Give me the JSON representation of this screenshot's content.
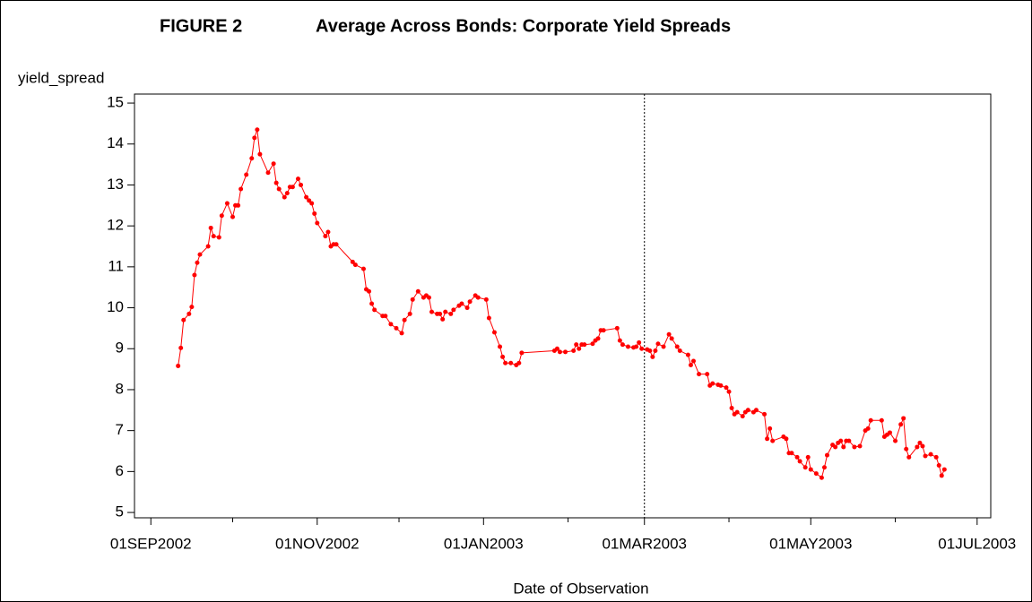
{
  "chart_data": {
    "type": "line",
    "figure_label": "FIGURE 2",
    "title": "Average Across Bonds: Corporate Yield Spreads",
    "ylabel": "yield_spread",
    "xlabel": "Date of Observation",
    "color": "#ff0000",
    "reference_line": "2003-03-01",
    "xlim": [
      "2002-08-26",
      "2003-07-06"
    ],
    "xticks": [
      {
        "value": "2002-09-01",
        "label": "01SEP2002"
      },
      {
        "value": "2002-11-01",
        "label": "01NOV2002"
      },
      {
        "value": "2003-01-01",
        "label": "01JAN2003"
      },
      {
        "value": "2003-03-01",
        "label": "01MAR2003"
      },
      {
        "value": "2003-05-01",
        "label": "01MAY2003"
      },
      {
        "value": "2003-07-01",
        "label": "01JUL2003"
      }
    ],
    "xminorticks": [
      "2002-10-01",
      "2002-12-01",
      "2003-02-01",
      "2003-04-01",
      "2003-06-01"
    ],
    "ylim": [
      4.87,
      15.22
    ],
    "yticks": [
      5,
      6,
      7,
      8,
      9,
      10,
      11,
      12,
      13,
      14,
      15
    ],
    "x": [
      "2002-09-11",
      "2002-09-12",
      "2002-09-13",
      "2002-09-15",
      "2002-09-16",
      "2002-09-17",
      "2002-09-18",
      "2002-09-19",
      "2002-09-22",
      "2002-09-23",
      "2002-09-24",
      "2002-09-26",
      "2002-09-27",
      "2002-09-29",
      "2002-10-01",
      "2002-10-02",
      "2002-10-03",
      "2002-10-04",
      "2002-10-06",
      "2002-10-08",
      "2002-10-09",
      "2002-10-10",
      "2002-10-11",
      "2002-10-14",
      "2002-10-16",
      "2002-10-17",
      "2002-10-18",
      "2002-10-20",
      "2002-10-21",
      "2002-10-22",
      "2002-10-23",
      "2002-10-25",
      "2002-10-26",
      "2002-10-28",
      "2002-10-29",
      "2002-10-30",
      "2002-10-31",
      "2002-11-01",
      "2002-11-04",
      "2002-11-05",
      "2002-11-06",
      "2002-11-07",
      "2002-11-08",
      "2002-11-14",
      "2002-11-15",
      "2002-11-18",
      "2002-11-19",
      "2002-11-20",
      "2002-11-21",
      "2002-11-22",
      "2002-11-25",
      "2002-11-26",
      "2002-11-28",
      "2002-11-30",
      "2002-12-02",
      "2002-12-03",
      "2002-12-05",
      "2002-12-06",
      "2002-12-08",
      "2002-12-10",
      "2002-12-11",
      "2002-12-12",
      "2002-12-13",
      "2002-12-15",
      "2002-12-16",
      "2002-12-17",
      "2002-12-18",
      "2002-12-20",
      "2002-12-21",
      "2002-12-23",
      "2002-12-24",
      "2002-12-26",
      "2002-12-27",
      "2002-12-29",
      "2002-12-30",
      "2003-01-02",
      "2003-01-03",
      "2003-01-05",
      "2003-01-07",
      "2003-01-08",
      "2003-01-09",
      "2003-01-11",
      "2003-01-13",
      "2003-01-14",
      "2003-01-15",
      "2003-01-27",
      "2003-01-28",
      "2003-01-29",
      "2003-01-31",
      "2003-02-03",
      "2003-02-04",
      "2003-02-05",
      "2003-02-06",
      "2003-02-07",
      "2003-02-10",
      "2003-02-11",
      "2003-02-12",
      "2003-02-13",
      "2003-02-14",
      "2003-02-19",
      "2003-02-20",
      "2003-02-21",
      "2003-02-23",
      "2003-02-25",
      "2003-02-26",
      "2003-02-27",
      "2003-02-28",
      "2003-03-02",
      "2003-03-03",
      "2003-03-04",
      "2003-03-05",
      "2003-03-06",
      "2003-03-08",
      "2003-03-10",
      "2003-03-11",
      "2003-03-13",
      "2003-03-14",
      "2003-03-17",
      "2003-03-18",
      "2003-03-19",
      "2003-03-21",
      "2003-03-24",
      "2003-03-25",
      "2003-03-26",
      "2003-03-28",
      "2003-03-29",
      "2003-03-31",
      "2003-04-01",
      "2003-04-02",
      "2003-04-03",
      "2003-04-04",
      "2003-04-06",
      "2003-04-07",
      "2003-04-08",
      "2003-04-10",
      "2003-04-11",
      "2003-04-14",
      "2003-04-15",
      "2003-04-16",
      "2003-04-17",
      "2003-04-21",
      "2003-04-22",
      "2003-04-23",
      "2003-04-24",
      "2003-04-26",
      "2003-04-27",
      "2003-04-29",
      "2003-04-30",
      "2003-05-01",
      "2003-05-03",
      "2003-05-05",
      "2003-05-06",
      "2003-05-07",
      "2003-05-09",
      "2003-05-10",
      "2003-05-11",
      "2003-05-12",
      "2003-05-13",
      "2003-05-14",
      "2003-05-15",
      "2003-05-17",
      "2003-05-19",
      "2003-05-21",
      "2003-05-22",
      "2003-05-23",
      "2003-05-27",
      "2003-05-28",
      "2003-05-29",
      "2003-05-30",
      "2003-06-01",
      "2003-06-03",
      "2003-06-04",
      "2003-06-05",
      "2003-06-06",
      "2003-06-09",
      "2003-06-10",
      "2003-06-11",
      "2003-06-12",
      "2003-06-14",
      "2003-06-16",
      "2003-06-17",
      "2003-06-18",
      "2003-06-19"
    ],
    "values": [
      8.58,
      9.02,
      9.7,
      9.85,
      10.02,
      10.8,
      11.1,
      11.3,
      11.5,
      11.95,
      11.75,
      11.72,
      12.25,
      12.55,
      12.22,
      12.5,
      12.5,
      12.9,
      13.25,
      13.65,
      14.15,
      14.35,
      13.75,
      13.3,
      13.52,
      13.05,
      12.9,
      12.7,
      12.8,
      12.95,
      12.95,
      13.15,
      13.0,
      12.7,
      12.62,
      12.55,
      12.3,
      12.07,
      11.75,
      11.85,
      11.5,
      11.55,
      11.55,
      11.12,
      11.05,
      10.95,
      10.45,
      10.4,
      10.1,
      9.95,
      9.8,
      9.8,
      9.6,
      9.5,
      9.38,
      9.7,
      9.85,
      10.2,
      10.4,
      10.25,
      10.3,
      10.25,
      9.9,
      9.85,
      9.85,
      9.72,
      9.9,
      9.85,
      9.95,
      10.05,
      10.1,
      10.0,
      10.15,
      10.3,
      10.25,
      10.2,
      9.75,
      9.4,
      9.05,
      8.8,
      8.65,
      8.65,
      8.6,
      8.65,
      8.9,
      8.95,
      9.0,
      8.92,
      8.92,
      8.95,
      9.1,
      9.0,
      9.1,
      9.1,
      9.12,
      9.2,
      9.25,
      9.45,
      9.45,
      9.5,
      9.2,
      9.1,
      9.05,
      9.03,
      9.05,
      9.15,
      9.0,
      8.98,
      8.95,
      8.8,
      8.95,
      9.12,
      9.05,
      9.35,
      9.25,
      9.05,
      8.95,
      8.85,
      8.6,
      8.7,
      8.38,
      8.38,
      8.1,
      8.15,
      8.12,
      8.1,
      8.05,
      7.95,
      7.55,
      7.4,
      7.45,
      7.35,
      7.45,
      7.5,
      7.45,
      7.5,
      7.4,
      6.8,
      7.05,
      6.75,
      6.85,
      6.8,
      6.45,
      6.45,
      6.35,
      6.25,
      6.1,
      6.35,
      6.05,
      5.95,
      5.85,
      6.1,
      6.4,
      6.65,
      6.6,
      6.7,
      6.75,
      6.6,
      6.75,
      6.75,
      6.6,
      6.62,
      7.0,
      7.05,
      7.25,
      7.25,
      6.85,
      6.9,
      6.95,
      6.75,
      7.15,
      7.3,
      6.55,
      6.35,
      6.6,
      6.7,
      6.62,
      6.38,
      6.42,
      6.35,
      6.15,
      5.9,
      6.05
    ]
  }
}
